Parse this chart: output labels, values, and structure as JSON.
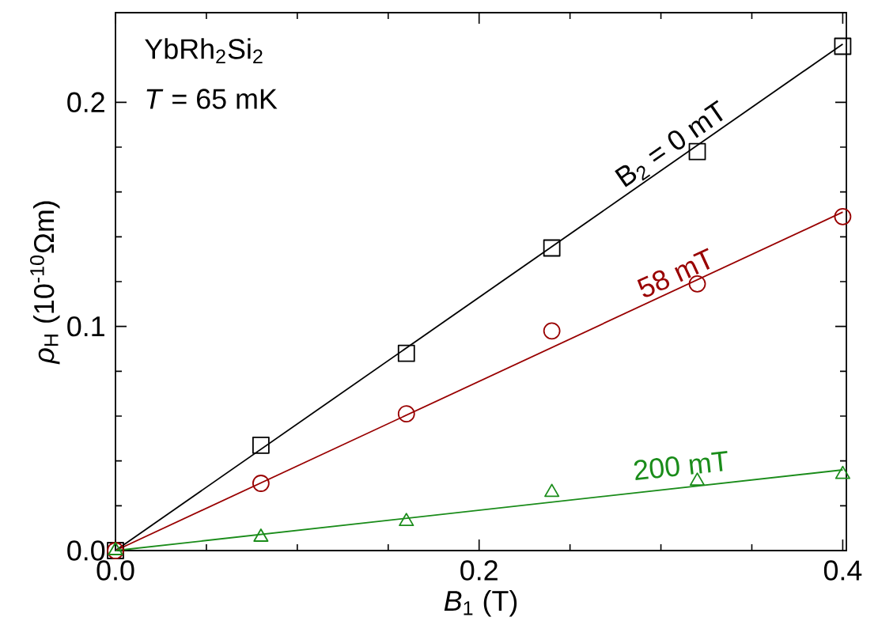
{
  "chart_data": {
    "type": "scatter",
    "xlabel": "*B*$_{1}$ (T)",
    "ylabel": "*ρ*$_{H}$ (10$^{-10}$Ωm)",
    "annotations": [
      "YbRh$_{2}$Si$_{2}$",
      "*T* = 65 mK"
    ],
    "xlim": [
      0,
      0.402
    ],
    "ylim": [
      0,
      0.24
    ],
    "xticks": [
      {
        "value": 0,
        "label": "0.0"
      },
      {
        "value": 0.2,
        "label": "0.2"
      },
      {
        "value": 0.4,
        "label": "0.4"
      }
    ],
    "yticks": [
      {
        "value": 0,
        "label": "0.0"
      },
      {
        "value": 0.1,
        "label": "0.1"
      },
      {
        "value": 0.2,
        "label": "0.2"
      }
    ],
    "grid": false,
    "legend": false,
    "series": [
      {
        "name": "B$_{2}$ = 0 mT",
        "color": "#000000",
        "marker": "square",
        "x": [
          0,
          0.08,
          0.16,
          0.24,
          0.32,
          0.4
        ],
        "values": [
          0,
          0.047,
          0.088,
          0.135,
          0.178,
          0.225
        ]
      },
      {
        "name": "58 mT",
        "color": "#990000",
        "marker": "circle",
        "x": [
          0,
          0.08,
          0.16,
          0.24,
          0.32,
          0.4
        ],
        "values": [
          0,
          0.03,
          0.061,
          0.098,
          0.119,
          0.149
        ]
      },
      {
        "name": "200 mT",
        "color": "#1a8c1a",
        "marker": "triangle",
        "x": [
          0,
          0.08,
          0.16,
          0.24,
          0.32,
          0.4
        ],
        "values": [
          0,
          0.006,
          0.013,
          0.026,
          0.031,
          0.034
        ]
      },
      {
        "type": "line",
        "color": "#000000",
        "marker": "none",
        "x": [
          0,
          0.4
        ],
        "values": [
          0,
          0.226
        ]
      },
      {
        "type": "line",
        "color": "#990000",
        "marker": "none",
        "x": [
          0,
          0.4
        ],
        "values": [
          0,
          0.151
        ]
      },
      {
        "type": "line",
        "color": "#1a8c1a",
        "marker": "none",
        "x": [
          0,
          0.4
        ],
        "values": [
          0,
          0.036
        ]
      }
    ]
  }
}
